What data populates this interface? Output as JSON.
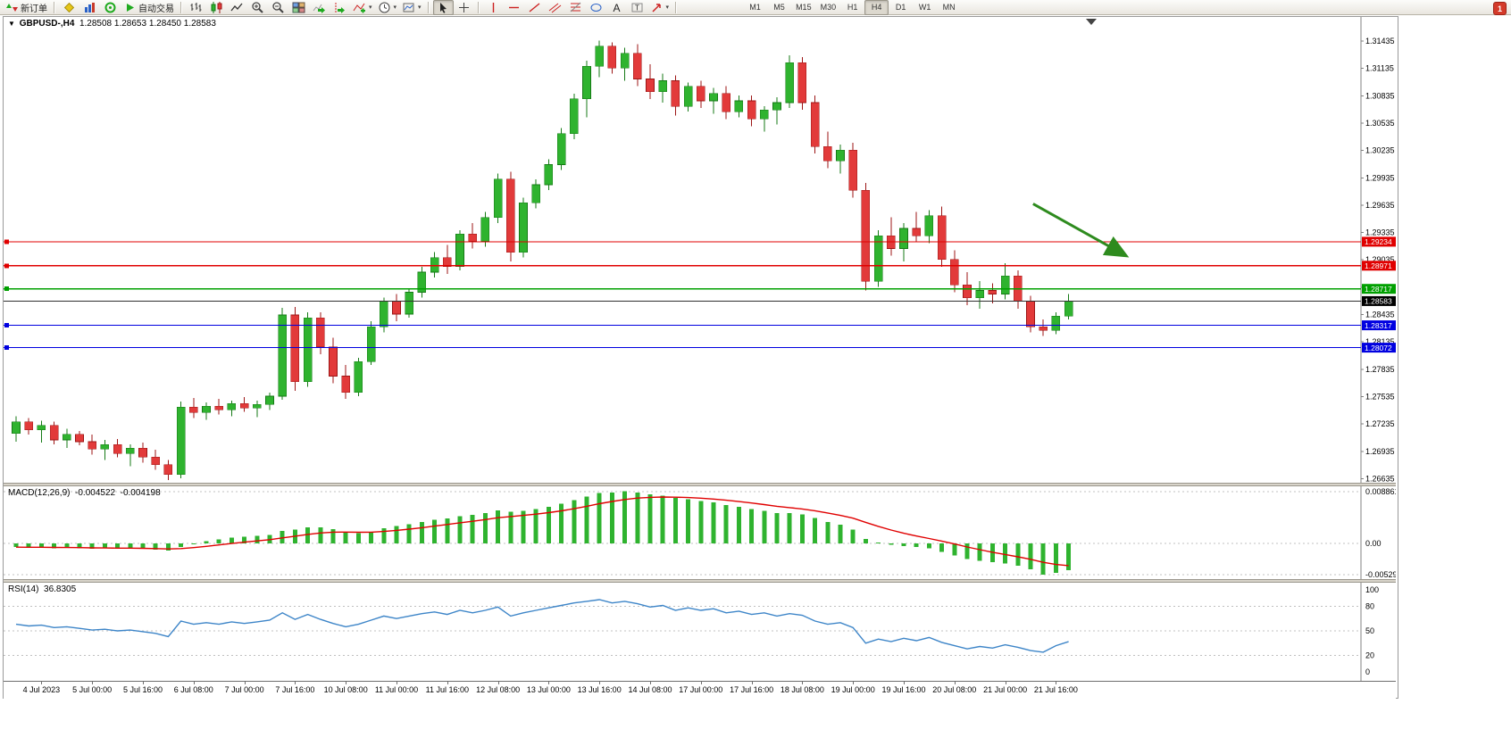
{
  "toolbar": {
    "groups": [
      {
        "items": [
          {
            "icon": "new-order",
            "label": "新订单"
          }
        ]
      },
      {
        "items": [
          {
            "icon": "metaeditor"
          },
          {
            "icon": "market-watch"
          },
          {
            "icon": "navigator"
          },
          {
            "icon": "auto-trading",
            "label": "自动交易"
          }
        ]
      },
      {
        "items": [
          {
            "icon": "bar-chart"
          },
          {
            "icon": "candlestick-chart"
          },
          {
            "icon": "line-chart"
          },
          {
            "icon": "zoom-in"
          },
          {
            "icon": "zoom-out"
          },
          {
            "icon": "tile-windows"
          },
          {
            "icon": "auto-scroll"
          },
          {
            "icon": "chart-shift"
          },
          {
            "icon": "indicators",
            "caret": true
          },
          {
            "icon": "periods",
            "caret": true
          },
          {
            "icon": "templates",
            "caret": true
          }
        ]
      },
      {
        "items": [
          {
            "icon": "cursor",
            "pressed": true
          },
          {
            "icon": "crosshair"
          }
        ]
      },
      {
        "items": [
          {
            "icon": "vertical-line"
          },
          {
            "icon": "horizontal-line"
          },
          {
            "icon": "trendline"
          },
          {
            "icon": "equidistant-channel"
          },
          {
            "icon": "fibonacci"
          },
          {
            "icon": "shapes"
          },
          {
            "icon": "text"
          },
          {
            "icon": "text-label"
          },
          {
            "icon": "arrows",
            "caret": true
          }
        ]
      },
      {
        "items": "timeframes"
      }
    ],
    "timeframes": [
      "M1",
      "M5",
      "M15",
      "M30",
      "H1",
      "H4",
      "D1",
      "W1",
      "MN"
    ],
    "active_timeframe": "H4",
    "notification": "1"
  },
  "chart": {
    "quote": {
      "symbol_period": "GBPUSD-,H4",
      "open": "1.28508",
      "high": "1.28653",
      "low": "1.28450",
      "close": "1.28583"
    },
    "price_axis": {
      "ticks": [
        {
          "label": "1.31435",
          "value": 1.31435
        },
        {
          "label": "1.31135",
          "value": 1.31135
        },
        {
          "label": "1.30835",
          "value": 1.30835
        },
        {
          "label": "1.30535",
          "value": 1.30535
        },
        {
          "label": "1.30235",
          "value": 1.30235
        },
        {
          "label": "1.29935",
          "value": 1.29935
        },
        {
          "label": "1.29635",
          "value": 1.29635
        },
        {
          "label": "1.29335",
          "value": 1.29335
        },
        {
          "label": "1.29035",
          "value": 1.29035
        },
        {
          "label": "1.28735",
          "value": 1.28735
        },
        {
          "label": "1.28435",
          "value": 1.28435
        },
        {
          "label": "1.28135",
          "value": 1.28135
        },
        {
          "label": "1.27835",
          "value": 1.27835
        },
        {
          "label": "1.27535",
          "value": 1.27535
        },
        {
          "label": "1.27235",
          "value": 1.27235
        },
        {
          "label": "1.26935",
          "value": 1.26935
        },
        {
          "label": "1.26635",
          "value": 1.26635
        }
      ]
    },
    "hlines": [
      {
        "price": 1.29234,
        "label": "1.29234",
        "color": "#e00000"
      },
      {
        "price": 1.28971,
        "label": "1.28971",
        "color": "#e00000"
      },
      {
        "price": 1.28717,
        "label": "1.28717",
        "color": "#00a000"
      },
      {
        "price": 1.28317,
        "label": "1.28317",
        "color": "#0000e0"
      },
      {
        "price": 1.28072,
        "label": "1.28072",
        "color": "#0000e0"
      }
    ],
    "current_price": {
      "price": 1.28583,
      "label": "1.28583",
      "color": "#303030"
    },
    "arrow_annotation": {
      "from_index": 80.2,
      "from_price": 1.2965,
      "to_index": 87.4,
      "to_price": 1.2909,
      "color": "#2e8b1e"
    },
    "time_labels": [
      {
        "text": "4 Jul 2023",
        "i": 2
      },
      {
        "text": "5 Jul 00:00",
        "i": 6
      },
      {
        "text": "5 Jul 16:00",
        "i": 10
      },
      {
        "text": "6 Jul 08:00",
        "i": 14
      },
      {
        "text": "7 Jul 00:00",
        "i": 18
      },
      {
        "text": "7 Jul 16:00",
        "i": 22
      },
      {
        "text": "10 Jul 08:00",
        "i": 26
      },
      {
        "text": "11 Jul 00:00",
        "i": 30
      },
      {
        "text": "11 Jul 16:00",
        "i": 34
      },
      {
        "text": "12 Jul 08:00",
        "i": 38
      },
      {
        "text": "13 Jul 00:00",
        "i": 42
      },
      {
        "text": "13 Jul 16:00",
        "i": 46
      },
      {
        "text": "14 Jul 08:00",
        "i": 50
      },
      {
        "text": "17 Jul 00:00",
        "i": 54
      },
      {
        "text": "17 Jul 16:00",
        "i": 58
      },
      {
        "text": "18 Jul 08:00",
        "i": 62
      },
      {
        "text": "19 Jul 00:00",
        "i": 66
      },
      {
        "text": "19 Jul 16:00",
        "i": 70
      },
      {
        "text": "20 Jul 08:00",
        "i": 74
      },
      {
        "text": "21 Jul 00:00",
        "i": 78
      },
      {
        "text": "21 Jul 16:00",
        "i": 82
      }
    ],
    "candles": [
      [
        1.2713,
        1.2732,
        1.2704,
        1.2726
      ],
      [
        1.2726,
        1.273,
        1.2712,
        1.2717
      ],
      [
        1.2717,
        1.2727,
        1.2703,
        1.2722
      ],
      [
        1.2722,
        1.2726,
        1.2701,
        1.2706
      ],
      [
        1.2706,
        1.2718,
        1.2697,
        1.2712
      ],
      [
        1.2712,
        1.2716,
        1.27,
        1.2704
      ],
      [
        1.2704,
        1.2712,
        1.269,
        1.2696
      ],
      [
        1.2696,
        1.2706,
        1.2684,
        1.2701
      ],
      [
        1.2701,
        1.2707,
        1.2687,
        1.2691
      ],
      [
        1.2691,
        1.2701,
        1.2677,
        1.2697
      ],
      [
        1.2697,
        1.2703,
        1.2681,
        1.2687
      ],
      [
        1.2687,
        1.2695,
        1.2673,
        1.2679
      ],
      [
        1.2679,
        1.2684,
        1.2662,
        1.2668
      ],
      [
        1.2668,
        1.2748,
        1.2664,
        1.2742
      ],
      [
        1.2742,
        1.2752,
        1.273,
        1.2736
      ],
      [
        1.2736,
        1.2747,
        1.2728,
        1.2743
      ],
      [
        1.2743,
        1.2751,
        1.2734,
        1.2739
      ],
      [
        1.2739,
        1.2749,
        1.2732,
        1.2746
      ],
      [
        1.2746,
        1.2753,
        1.2737,
        1.2741
      ],
      [
        1.2741,
        1.2749,
        1.2731,
        1.2745
      ],
      [
        1.2745,
        1.2758,
        1.2739,
        1.2754
      ],
      [
        1.2754,
        1.2851,
        1.275,
        1.2843
      ],
      [
        1.2843,
        1.2852,
        1.276,
        1.277
      ],
      [
        1.277,
        1.2846,
        1.2764,
        1.284
      ],
      [
        1.284,
        1.2846,
        1.28,
        1.2808
      ],
      [
        1.2808,
        1.2818,
        1.2768,
        1.2776
      ],
      [
        1.2776,
        1.2788,
        1.2751,
        1.2758
      ],
      [
        1.2758,
        1.2796,
        1.2754,
        1.2792
      ],
      [
        1.2792,
        1.2836,
        1.2788,
        1.283
      ],
      [
        1.283,
        1.2862,
        1.2824,
        1.2858
      ],
      [
        1.2858,
        1.2866,
        1.2836,
        1.2844
      ],
      [
        1.2844,
        1.2872,
        1.284,
        1.2868
      ],
      [
        1.2868,
        1.2896,
        1.2862,
        1.289
      ],
      [
        1.289,
        1.2912,
        1.2884,
        1.2906
      ],
      [
        1.2906,
        1.292,
        1.2888,
        1.2896
      ],
      [
        1.2896,
        1.2936,
        1.2892,
        1.2932
      ],
      [
        1.2932,
        1.2944,
        1.2916,
        1.2924
      ],
      [
        1.2924,
        1.2956,
        1.2918,
        1.295
      ],
      [
        1.295,
        1.2998,
        1.2944,
        1.2992
      ],
      [
        1.2992,
        1.3,
        1.2902,
        1.2912
      ],
      [
        1.2912,
        1.2972,
        1.2906,
        1.2966
      ],
      [
        1.2966,
        1.2992,
        1.296,
        1.2986
      ],
      [
        1.2986,
        1.3014,
        1.298,
        1.3008
      ],
      [
        1.3008,
        1.3048,
        1.3002,
        1.3042
      ],
      [
        1.3042,
        1.3086,
        1.3036,
        1.308
      ],
      [
        1.308,
        1.3122,
        1.306,
        1.3116
      ],
      [
        1.3116,
        1.3144,
        1.3104,
        1.3138
      ],
      [
        1.3138,
        1.3142,
        1.3108,
        1.3114
      ],
      [
        1.3114,
        1.3136,
        1.31,
        1.313
      ],
      [
        1.313,
        1.314,
        1.3094,
        1.3102
      ],
      [
        1.3102,
        1.3118,
        1.308,
        1.3088
      ],
      [
        1.3088,
        1.3108,
        1.3076,
        1.31
      ],
      [
        1.31,
        1.3106,
        1.3062,
        1.3072
      ],
      [
        1.3072,
        1.3098,
        1.3066,
        1.3094
      ],
      [
        1.3094,
        1.31,
        1.307,
        1.3078
      ],
      [
        1.3078,
        1.3092,
        1.3064,
        1.3086
      ],
      [
        1.3086,
        1.3094,
        1.3058,
        1.3066
      ],
      [
        1.3066,
        1.3084,
        1.306,
        1.3078
      ],
      [
        1.3078,
        1.3084,
        1.305,
        1.3058
      ],
      [
        1.3058,
        1.3072,
        1.3044,
        1.3068
      ],
      [
        1.3068,
        1.3082,
        1.3052,
        1.3076
      ],
      [
        1.3076,
        1.3128,
        1.307,
        1.312
      ],
      [
        1.312,
        1.3126,
        1.3068,
        1.3076
      ],
      [
        1.3076,
        1.3084,
        1.302,
        1.3028
      ],
      [
        1.3028,
        1.3044,
        1.3004,
        1.3012
      ],
      [
        1.3012,
        1.303,
        1.2998,
        1.3024
      ],
      [
        1.3024,
        1.3032,
        1.2972,
        1.298
      ],
      [
        1.298,
        1.2988,
        1.287,
        1.288
      ],
      [
        1.288,
        1.2936,
        1.2874,
        1.293
      ],
      [
        1.293,
        1.295,
        1.2908,
        1.2916
      ],
      [
        1.2916,
        1.2944,
        1.2902,
        1.2938
      ],
      [
        1.2938,
        1.2956,
        1.2924,
        1.293
      ],
      [
        1.293,
        1.2958,
        1.2922,
        1.2952
      ],
      [
        1.2952,
        1.2962,
        1.2896,
        1.2904
      ],
      [
        1.2904,
        1.2914,
        1.2868,
        1.2876
      ],
      [
        1.2876,
        1.289,
        1.2854,
        1.2862
      ],
      [
        1.2862,
        1.288,
        1.285,
        1.287
      ],
      [
        1.287,
        1.2878,
        1.2856,
        1.2866
      ],
      [
        1.2866,
        1.29,
        1.286,
        1.2886
      ],
      [
        1.2886,
        1.2892,
        1.285,
        1.2858
      ],
      [
        1.2858,
        1.2864,
        1.2824,
        1.283
      ],
      [
        1.283,
        1.2838,
        1.282,
        1.2826
      ],
      [
        1.2826,
        1.2846,
        1.2822,
        1.2842
      ],
      [
        1.2842,
        1.2866,
        1.2838,
        1.28583
      ]
    ]
  },
  "macd": {
    "name": "MACD(12,26,9)",
    "value_main": "-0.004522",
    "value_signal": "-0.004198",
    "axis": [
      {
        "label": "0.008861",
        "value": 0.008861
      },
      {
        "label": "0.00",
        "value": 0
      },
      {
        "label": "-0.005294",
        "value": -0.005294
      }
    ],
    "values": [
      -0.0006,
      -0.0007,
      -0.0006,
      -0.0008,
      -0.0007,
      -0.0008,
      -0.0009,
      -0.0008,
      -0.0009,
      -0.0008,
      -0.0009,
      -0.001,
      -0.0012,
      -0.0006,
      0.0,
      0.0004,
      0.0007,
      0.001,
      0.0012,
      0.0013,
      0.0015,
      0.0022,
      0.0024,
      0.0028,
      0.0028,
      0.0025,
      0.002,
      0.0018,
      0.002,
      0.0026,
      0.003,
      0.0033,
      0.0037,
      0.0041,
      0.0043,
      0.0047,
      0.0049,
      0.0052,
      0.0057,
      0.0054,
      0.0056,
      0.0059,
      0.0063,
      0.0068,
      0.0074,
      0.008,
      0.0086,
      0.0087,
      0.0089,
      0.0087,
      0.0084,
      0.0082,
      0.0078,
      0.0076,
      0.0073,
      0.007,
      0.0066,
      0.0063,
      0.0059,
      0.0056,
      0.0052,
      0.0052,
      0.005,
      0.0044,
      0.0037,
      0.0032,
      0.0024,
      0.0008,
      0.0002,
      -0.0002,
      -0.0004,
      -0.0006,
      -0.0008,
      -0.0014,
      -0.002,
      -0.0026,
      -0.0029,
      -0.0032,
      -0.0034,
      -0.0038,
      -0.0044,
      -0.0053,
      -0.005,
      -0.004522
    ]
  },
  "rsi": {
    "name": "RSI(14)",
    "value": "36.8305",
    "levels": [
      80,
      50,
      20
    ],
    "axis": [
      {
        "label": "100",
        "value": 100
      },
      {
        "label": "80",
        "value": 80
      },
      {
        "label": "50",
        "value": 50
      },
      {
        "label": "20",
        "value": 20
      },
      {
        "label": "0",
        "value": 0
      }
    ],
    "values": [
      58,
      56,
      57,
      54,
      55,
      53,
      51,
      52,
      50,
      51,
      49,
      47,
      43,
      62,
      58,
      60,
      58,
      61,
      59,
      61,
      63,
      72,
      64,
      70,
      64,
      59,
      55,
      58,
      63,
      68,
      65,
      68,
      71,
      73,
      70,
      75,
      72,
      75,
      79,
      68,
      72,
      75,
      78,
      81,
      84,
      86,
      88,
      84,
      86,
      83,
      79,
      81,
      75,
      78,
      75,
      77,
      72,
      74,
      70,
      72,
      68,
      71,
      69,
      62,
      58,
      60,
      54,
      35,
      40,
      37,
      41,
      38,
      42,
      36,
      32,
      28,
      31,
      29,
      33,
      30,
      26,
      24,
      32,
      36.8305
    ]
  },
  "colors": {
    "candle_up": "#2fb32f",
    "candle_up_border": "#157a15",
    "candle_down": "#e23a3a",
    "candle_down_border": "#9c1515",
    "macd_bar": "#2fb32f",
    "macd_signal": "#e00000",
    "rsi_line": "#3d85c8",
    "axis_line": "#808080"
  }
}
